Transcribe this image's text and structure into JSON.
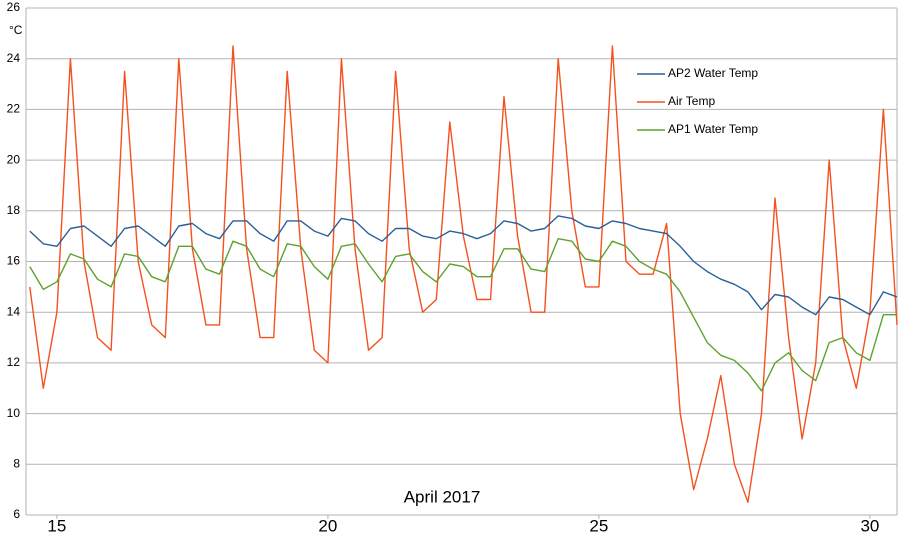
{
  "chart_data": {
    "type": "line",
    "x_label": "April 2017",
    "y_label": "°C",
    "x": [
      14.5,
      14.75,
      15,
      15.25,
      15.5,
      15.75,
      16,
      16.25,
      16.5,
      16.75,
      17,
      17.25,
      17.5,
      17.75,
      18,
      18.25,
      18.5,
      18.75,
      19,
      19.25,
      19.5,
      19.75,
      20,
      20.25,
      20.5,
      20.75,
      21,
      21.25,
      21.5,
      21.75,
      22,
      22.25,
      22.5,
      22.75,
      23,
      23.25,
      23.5,
      23.75,
      24,
      24.25,
      24.5,
      24.75,
      25,
      25.25,
      25.5,
      25.75,
      26,
      26.25,
      26.5,
      26.75,
      27,
      27.25,
      27.5,
      27.75,
      28,
      28.25,
      28.5,
      28.75,
      29,
      29.25,
      29.5,
      29.75,
      30,
      30.25,
      30.5
    ],
    "series": [
      {
        "name": "AP2 Water Temp",
        "color": "#2a6099",
        "values": [
          17.2,
          16.7,
          16.6,
          17.3,
          17.4,
          17.0,
          16.6,
          17.3,
          17.4,
          17.0,
          16.6,
          17.4,
          17.5,
          17.1,
          16.9,
          17.6,
          17.6,
          17.1,
          16.8,
          17.6,
          17.6,
          17.2,
          17.0,
          17.7,
          17.6,
          17.1,
          16.8,
          17.3,
          17.3,
          17.0,
          16.9,
          17.2,
          17.1,
          16.9,
          17.1,
          17.6,
          17.5,
          17.2,
          17.3,
          17.8,
          17.7,
          17.4,
          17.3,
          17.6,
          17.5,
          17.3,
          17.2,
          17.1,
          16.6,
          16.0,
          15.6,
          15.3,
          15.1,
          14.8,
          14.1,
          14.7,
          14.6,
          14.2,
          13.9,
          14.6,
          14.5,
          14.2,
          13.9,
          14.8,
          14.6
        ]
      },
      {
        "name": "Air Temp",
        "color": "#f4511e",
        "values": [
          15,
          11,
          14,
          24,
          16,
          13,
          12.5,
          23.5,
          16,
          13.5,
          13,
          24,
          16.5,
          13.5,
          13.5,
          24.5,
          16.5,
          13,
          13,
          23.5,
          16.5,
          12.5,
          12,
          24,
          16.5,
          12.5,
          13,
          23.5,
          16.5,
          14,
          14.5,
          21.5,
          17,
          14.5,
          14.5,
          22.5,
          17,
          14,
          14,
          24,
          18,
          15,
          15,
          24.5,
          16,
          15.5,
          15.5,
          17.5,
          10,
          7,
          9,
          11.5,
          8,
          6.5,
          10,
          18.5,
          13,
          9,
          12,
          20,
          13,
          11,
          14,
          22,
          13.5
        ]
      },
      {
        "name": "AP1 Water Temp",
        "color": "#5fa22d",
        "values": [
          15.8,
          14.9,
          15.2,
          16.3,
          16.1,
          15.3,
          15.0,
          16.3,
          16.2,
          15.4,
          15.2,
          16.6,
          16.6,
          15.7,
          15.5,
          16.8,
          16.6,
          15.7,
          15.4,
          16.7,
          16.6,
          15.8,
          15.3,
          16.6,
          16.7,
          15.9,
          15.2,
          16.2,
          16.3,
          15.6,
          15.2,
          15.9,
          15.8,
          15.4,
          15.4,
          16.5,
          16.5,
          15.7,
          15.6,
          16.9,
          16.8,
          16.1,
          16.0,
          16.8,
          16.6,
          16.0,
          15.7,
          15.5,
          14.8,
          13.8,
          12.8,
          12.3,
          12.1,
          11.6,
          10.9,
          12.0,
          12.4,
          11.7,
          11.3,
          12.8,
          13.0,
          12.4,
          12.1,
          13.9,
          13.9
        ]
      }
    ],
    "xlim": [
      14.43,
      30.5
    ],
    "xticks": [
      15,
      20,
      25,
      30
    ],
    "ylim": [
      6,
      26
    ],
    "yticks": [
      6,
      8,
      10,
      12,
      14,
      16,
      18,
      20,
      22,
      24,
      26
    ],
    "grid": true,
    "legend": "right"
  }
}
